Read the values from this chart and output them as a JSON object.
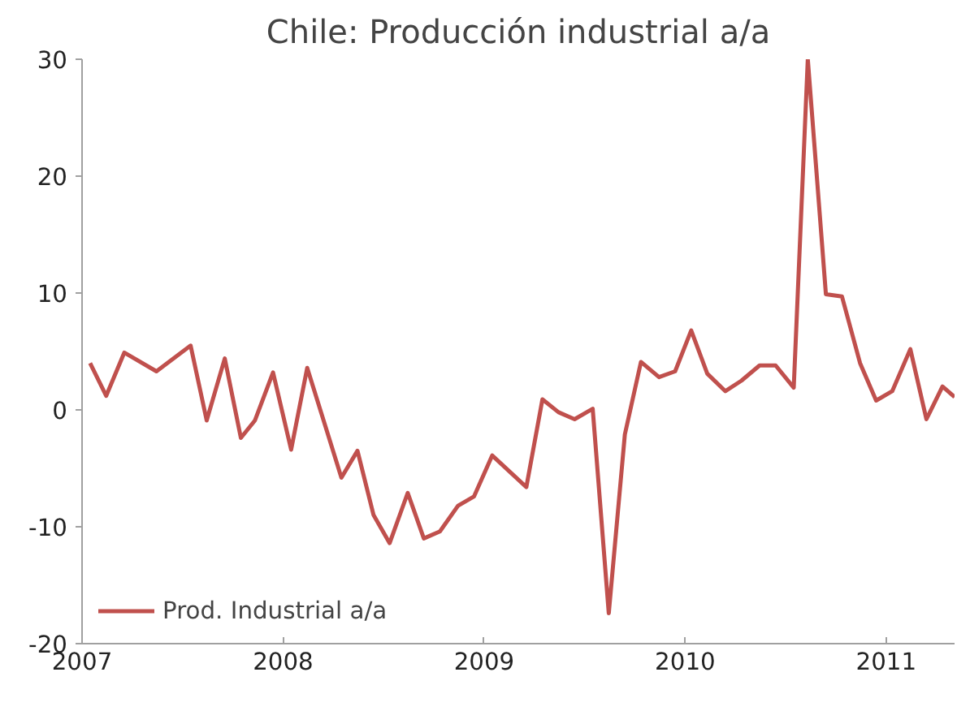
{
  "chart_data": {
    "type": "line",
    "title": "Chile: Producción industrial a/a",
    "x": [
      2007.04,
      2007.12,
      2007.21,
      2007.37,
      2007.54,
      2007.62,
      2007.71,
      2007.79,
      2007.86,
      2007.95,
      2008.04,
      2008.12,
      2008.29,
      2008.37,
      2008.45,
      2008.53,
      2008.62,
      2008.7,
      2008.78,
      2008.87,
      2008.95,
      2009.04,
      2009.21,
      2009.29,
      2009.37,
      2009.45,
      2009.54,
      2009.62,
      2009.7,
      2009.78,
      2009.87,
      2009.95,
      2010.03,
      2010.11,
      2010.2,
      2010.28,
      2010.37,
      2010.45,
      2010.54,
      2010.61,
      2010.7,
      2010.78,
      2010.87,
      2010.95,
      2011.03,
      2011.12,
      2011.2,
      2011.28,
      2011.34
    ],
    "series": [
      {
        "name": "Prod. Industrial a/a",
        "color": "#c0504d",
        "values": [
          4.0,
          1.2,
          4.9,
          3.3,
          5.5,
          -0.9,
          4.4,
          -2.4,
          -0.9,
          3.2,
          -3.4,
          3.6,
          -5.8,
          -3.5,
          -9.0,
          -11.4,
          -7.1,
          -11.0,
          -10.4,
          -8.2,
          -7.4,
          -3.9,
          -6.6,
          0.9,
          -0.2,
          -0.8,
          0.1,
          -17.4,
          -2.1,
          4.1,
          2.8,
          3.3,
          6.8,
          3.1,
          1.6,
          2.5,
          3.8,
          3.8,
          1.9,
          30.0,
          9.9,
          9.7,
          4.0,
          0.8,
          1.6,
          5.2,
          -0.8,
          2.0,
          1.1
        ]
      }
    ],
    "xlim": [
      2007,
      2011.34
    ],
    "xticks": [
      2007,
      2008,
      2009,
      2010,
      2011
    ],
    "ylim": [
      -20,
      30
    ],
    "yticks": [
      -20,
      -10,
      0,
      10,
      20,
      30
    ],
    "grid": false,
    "legend": "bottom left",
    "marker": "none",
    "line_style": "solid"
  }
}
